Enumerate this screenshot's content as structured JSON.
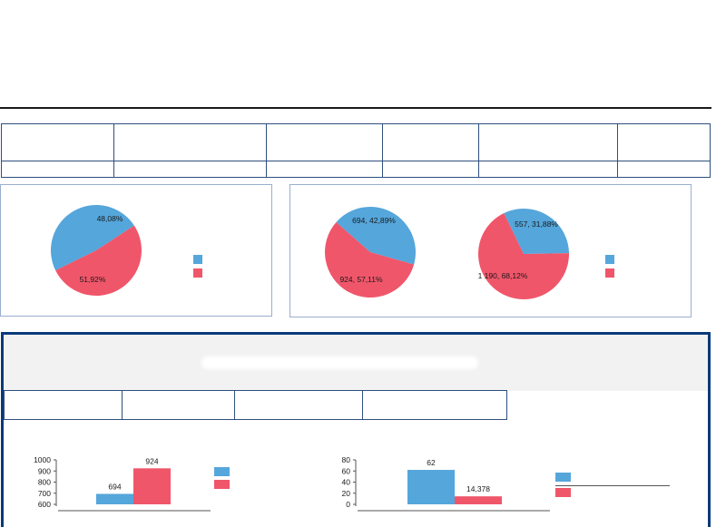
{
  "chart_data": [
    {
      "type": "pie",
      "values": [
        48.08,
        51.92
      ],
      "labels": [
        "48,08%",
        "51,92%"
      ],
      "colors": [
        "#55a6db",
        "#f0566a"
      ]
    },
    {
      "type": "pie",
      "values": [
        694,
        924
      ],
      "labels": [
        "694, 42,89%",
        "924, 57,11%"
      ],
      "colors": [
        "#55a6db",
        "#f0566a"
      ]
    },
    {
      "type": "pie",
      "values": [
        557,
        1190
      ],
      "labels": [
        "557, 31,88%",
        "1 190, 68,12%"
      ],
      "colors": [
        "#55a6db",
        "#f0566a"
      ]
    },
    {
      "type": "bar",
      "values": [
        694,
        924
      ],
      "labels": [
        "694",
        "924"
      ],
      "ylim": [
        600,
        1000
      ],
      "yticks": [
        "1000",
        "900",
        "800",
        "700",
        "600"
      ],
      "colors": [
        "#55a6db",
        "#f0566a"
      ]
    },
    {
      "type": "bar",
      "values": [
        62,
        14.378
      ],
      "labels": [
        "62",
        "14,378"
      ],
      "ylim": [
        0,
        80
      ],
      "yticks": [
        "80",
        "60",
        "40",
        "20",
        "0"
      ],
      "colors": [
        "#55a6db",
        "#f0566a"
      ]
    }
  ]
}
